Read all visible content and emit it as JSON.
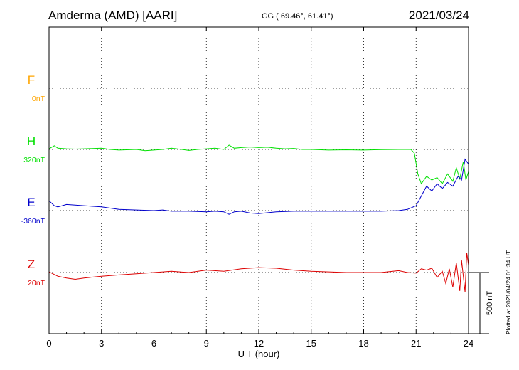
{
  "header": {
    "station": "Amderma (AMD)  [AARI]",
    "coords": "GG ( 69.46°,  61.41°)",
    "date": "2021/03/24"
  },
  "footer": "Plotted at 2021/04/24 01:34 UT",
  "colors": {
    "F": "#ffa500",
    "H": "#00e000",
    "E": "#0000cc",
    "Z": "#dd0000",
    "axis": "#000000"
  },
  "chart_data": {
    "type": "line",
    "xlabel": "U T (hour)",
    "xlim": [
      0,
      24
    ],
    "xticks": [
      0,
      3,
      6,
      9,
      12,
      15,
      18,
      21,
      24
    ],
    "grid": true,
    "scale_bar": {
      "value": 500,
      "label": "500 nT"
    },
    "series": [
      {
        "name": "F",
        "offset": "0nT",
        "values": []
      },
      {
        "name": "H",
        "offset": "320nT",
        "x": [
          0,
          0.3,
          0.5,
          1,
          1.5,
          2,
          3,
          3.5,
          4,
          5,
          5.5,
          6,
          6.5,
          7,
          7.3,
          7.6,
          8,
          8.5,
          9,
          9.5,
          10,
          10.3,
          10.6,
          11,
          11.5,
          12,
          12.5,
          13,
          13.5,
          14,
          14.5,
          15,
          16,
          17,
          18,
          19,
          20,
          20.7,
          20.9,
          21.1,
          21.3,
          21.6,
          21.9,
          22.2,
          22.5,
          22.8,
          23.1,
          23.3,
          23.5,
          23.7,
          23.85,
          24
        ],
        "y": [
          5,
          30,
          10,
          5,
          3,
          5,
          10,
          0,
          -5,
          0,
          -10,
          -5,
          0,
          10,
          5,
          0,
          -8,
          0,
          5,
          10,
          0,
          35,
          10,
          15,
          20,
          15,
          18,
          10,
          5,
          8,
          0,
          0,
          -5,
          -3,
          -5,
          -2,
          0,
          0,
          -30,
          -200,
          -280,
          -220,
          -250,
          -230,
          -280,
          -200,
          -260,
          -150,
          -240,
          -100,
          -250,
          -180
        ]
      },
      {
        "name": "E",
        "offset": "-360nT",
        "x": [
          0,
          0.3,
          0.5,
          1,
          1.5,
          2,
          3,
          4,
          5,
          6,
          6.5,
          7,
          8,
          9,
          9.5,
          10,
          10.3,
          10.6,
          11,
          11.5,
          12,
          13,
          14,
          15,
          16,
          17,
          18,
          19,
          20,
          20.5,
          21,
          21.3,
          21.6,
          21.9,
          22.2,
          22.5,
          22.8,
          23.1,
          23.4,
          23.6,
          23.8,
          24
        ],
        "y": [
          80,
          40,
          30,
          50,
          45,
          40,
          30,
          10,
          5,
          0,
          5,
          -5,
          -5,
          -10,
          -5,
          -10,
          -30,
          -10,
          -5,
          -20,
          -25,
          -10,
          -5,
          -5,
          -5,
          -5,
          -5,
          -5,
          0,
          10,
          40,
          120,
          200,
          160,
          220,
          180,
          230,
          200,
          280,
          250,
          420,
          380
        ]
      },
      {
        "name": "Z",
        "offset": "20nT",
        "x": [
          0,
          0.5,
          1,
          1.5,
          2,
          3,
          4,
          5,
          6,
          7,
          8,
          9,
          10,
          11,
          12,
          13,
          14,
          15,
          16,
          17,
          18,
          19,
          20,
          20.5,
          21,
          21.3,
          21.6,
          21.9,
          22.2,
          22.5,
          22.7,
          22.9,
          23.1,
          23.3,
          23.5,
          23.6,
          23.8,
          23.9,
          24
        ],
        "y": [
          5,
          -30,
          -45,
          -55,
          -45,
          -30,
          -20,
          -10,
          0,
          10,
          0,
          20,
          10,
          30,
          40,
          35,
          20,
          10,
          5,
          0,
          0,
          0,
          15,
          0,
          -5,
          30,
          20,
          35,
          -40,
          10,
          -90,
          30,
          -120,
          80,
          -150,
          100,
          -160,
          160,
          60
        ]
      }
    ]
  }
}
